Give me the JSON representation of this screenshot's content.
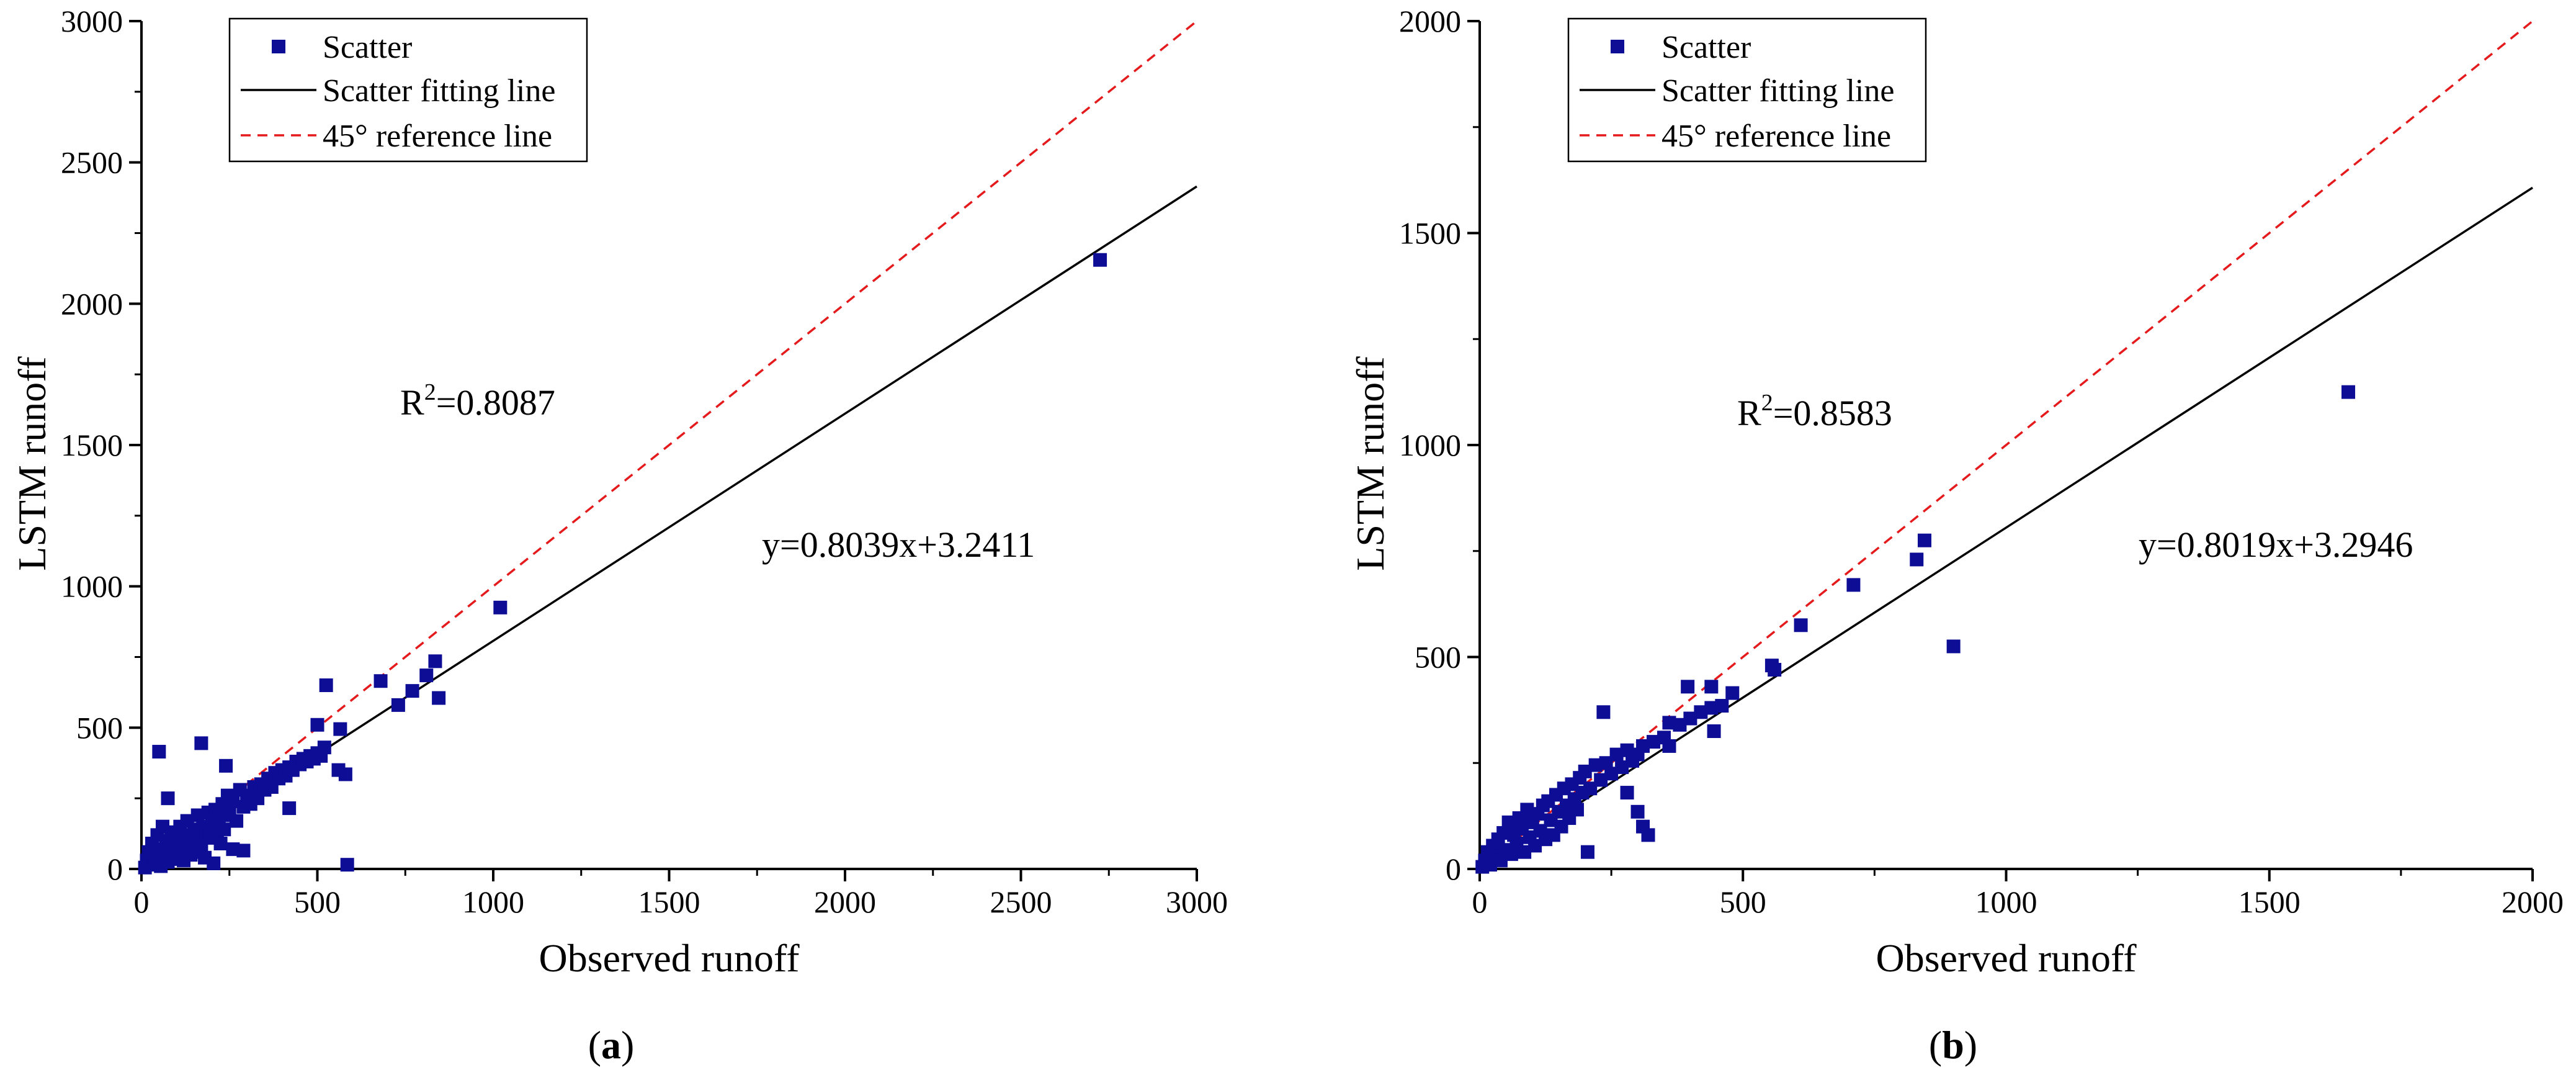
{
  "chart_data": [
    {
      "type": "scatter",
      "panel_label": "a",
      "xlabel": "Observed runoff",
      "ylabel": "LSTM runoff",
      "xlim": [
        0,
        3000
      ],
      "ylim": [
        0,
        3000
      ],
      "xticks": [
        "0",
        "500",
        "1000",
        "1500",
        "2000",
        "2500",
        "3000"
      ],
      "yticks": [
        "0",
        "500",
        "1000",
        "1500",
        "2000",
        "2500",
        "3000"
      ],
      "legend": [
        "Scatter",
        "Scatter fitting line",
        "45° reference line"
      ],
      "r2_prefix": "R",
      "r2_sup": "2",
      "r2_value": "=0.8087",
      "equation": "y=0.8039x+3.2411",
      "fit": {
        "slope": 0.8039,
        "intercept": 3.2411
      },
      "colors": {
        "scatter": "#0d0d96",
        "fit": "#000000",
        "reference": "#e41a1c"
      },
      "points": [
        [
          10,
          5
        ],
        [
          15,
          30
        ],
        [
          20,
          60
        ],
        [
          25,
          15
        ],
        [
          30,
          90
        ],
        [
          35,
          45
        ],
        [
          40,
          20
        ],
        [
          45,
          120
        ],
        [
          50,
          70
        ],
        [
          55,
          10
        ],
        [
          60,
          150
        ],
        [
          65,
          40
        ],
        [
          70,
          100
        ],
        [
          75,
          25
        ],
        [
          80,
          60
        ],
        [
          85,
          130
        ],
        [
          90,
          80
        ],
        [
          95,
          35
        ],
        [
          100,
          110
        ],
        [
          105,
          55
        ],
        [
          110,
          150
        ],
        [
          115,
          90
        ],
        [
          120,
          30
        ],
        [
          125,
          70
        ],
        [
          130,
          170
        ],
        [
          135,
          120
        ],
        [
          140,
          50
        ],
        [
          145,
          95
        ],
        [
          150,
          140
        ],
        [
          155,
          60
        ],
        [
          160,
          190
        ],
        [
          165,
          100
        ],
        [
          170,
          80
        ],
        [
          175,
          150
        ],
        [
          180,
          40
        ],
        [
          185,
          130
        ],
        [
          190,
          200
        ],
        [
          195,
          110
        ],
        [
          200,
          160
        ],
        [
          205,
          20
        ],
        [
          210,
          210
        ],
        [
          215,
          130
        ],
        [
          220,
          170
        ],
        [
          225,
          90
        ],
        [
          230,
          230
        ],
        [
          235,
          140
        ],
        [
          240,
          190
        ],
        [
          245,
          260
        ],
        [
          250,
          210
        ],
        [
          260,
          240
        ],
        [
          270,
          170
        ],
        [
          280,
          280
        ],
        [
          290,
          220
        ],
        [
          300,
          260
        ],
        [
          310,
          230
        ],
        [
          320,
          290
        ],
        [
          330,
          250
        ],
        [
          340,
          300
        ],
        [
          350,
          280
        ],
        [
          360,
          320
        ],
        [
          370,
          290
        ],
        [
          380,
          340
        ],
        [
          390,
          320
        ],
        [
          400,
          350
        ],
        [
          410,
          330
        ],
        [
          420,
          360
        ],
        [
          430,
          350
        ],
        [
          440,
          380
        ],
        [
          450,
          370
        ],
        [
          460,
          390
        ],
        [
          470,
          380
        ],
        [
          480,
          400
        ],
        [
          490,
          390
        ],
        [
          500,
          410
        ],
        [
          510,
          400
        ],
        [
          520,
          430
        ],
        [
          50,
          415
        ],
        [
          75,
          250
        ],
        [
          170,
          445
        ],
        [
          240,
          365
        ],
        [
          260,
          70
        ],
        [
          290,
          65
        ],
        [
          420,
          215
        ],
        [
          500,
          510
        ],
        [
          525,
          650
        ],
        [
          560,
          350
        ],
        [
          565,
          495
        ],
        [
          580,
          335
        ],
        [
          585,
          15
        ],
        [
          680,
          665
        ],
        [
          730,
          580
        ],
        [
          770,
          630
        ],
        [
          810,
          685
        ],
        [
          835,
          735
        ],
        [
          845,
          605
        ],
        [
          1020,
          925
        ],
        [
          2725,
          2155
        ]
      ]
    },
    {
      "type": "scatter",
      "panel_label": "b",
      "xlabel": "Observed runoff",
      "ylabel": "LSTM runoff",
      "xlim": [
        0,
        2000
      ],
      "ylim": [
        0,
        2000
      ],
      "xticks": [
        "0",
        "500",
        "1000",
        "1500",
        "2000"
      ],
      "yticks": [
        "0",
        "500",
        "1000",
        "1500",
        "2000"
      ],
      "legend": [
        "Scatter",
        "Scatter fitting line",
        "45° reference line"
      ],
      "r2_prefix": "R",
      "r2_sup": "2",
      "r2_value": "=0.8583",
      "equation": "y=0.8019x+3.2946",
      "fit": {
        "slope": 0.8019,
        "intercept": 3.2946
      },
      "colors": {
        "scatter": "#0d0d96",
        "fit": "#000000",
        "reference": "#e41a1c"
      },
      "points": [
        [
          5,
          5
        ],
        [
          10,
          20
        ],
        [
          15,
          40
        ],
        [
          20,
          10
        ],
        [
          25,
          55
        ],
        [
          30,
          30
        ],
        [
          35,
          70
        ],
        [
          40,
          20
        ],
        [
          45,
          85
        ],
        [
          50,
          45
        ],
        [
          55,
          110
        ],
        [
          60,
          35
        ],
        [
          65,
          80
        ],
        [
          70,
          60
        ],
        [
          75,
          120
        ],
        [
          80,
          95
        ],
        [
          85,
          40
        ],
        [
          90,
          140
        ],
        [
          95,
          75
        ],
        [
          100,
          110
        ],
        [
          105,
          55
        ],
        [
          110,
          130
        ],
        [
          115,
          90
        ],
        [
          120,
          150
        ],
        [
          125,
          70
        ],
        [
          130,
          160
        ],
        [
          135,
          115
        ],
        [
          140,
          80
        ],
        [
          145,
          175
        ],
        [
          150,
          135
        ],
        [
          155,
          100
        ],
        [
          160,
          190
        ],
        [
          165,
          150
        ],
        [
          170,
          120
        ],
        [
          175,
          200
        ],
        [
          180,
          165
        ],
        [
          185,
          140
        ],
        [
          190,
          215
        ],
        [
          195,
          180
        ],
        [
          200,
          230
        ],
        [
          210,
          190
        ],
        [
          220,
          245
        ],
        [
          230,
          210
        ],
        [
          240,
          250
        ],
        [
          250,
          225
        ],
        [
          260,
          270
        ],
        [
          270,
          240
        ],
        [
          280,
          280
        ],
        [
          290,
          255
        ],
        [
          300,
          270
        ],
        [
          310,
          290
        ],
        [
          330,
          300
        ],
        [
          350,
          310
        ],
        [
          360,
          345
        ],
        [
          380,
          340
        ],
        [
          400,
          355
        ],
        [
          420,
          370
        ],
        [
          440,
          380
        ],
        [
          460,
          385
        ],
        [
          205,
          40
        ],
        [
          235,
          370
        ],
        [
          280,
          180
        ],
        [
          300,
          135
        ],
        [
          310,
          100
        ],
        [
          320,
          80
        ],
        [
          360,
          290
        ],
        [
          395,
          430
        ],
        [
          440,
          430
        ],
        [
          445,
          325
        ],
        [
          480,
          415
        ],
        [
          555,
          480
        ],
        [
          560,
          470
        ],
        [
          610,
          575
        ],
        [
          710,
          670
        ],
        [
          830,
          730
        ],
        [
          845,
          775
        ],
        [
          900,
          525
        ],
        [
          1650,
          1125
        ]
      ]
    }
  ]
}
